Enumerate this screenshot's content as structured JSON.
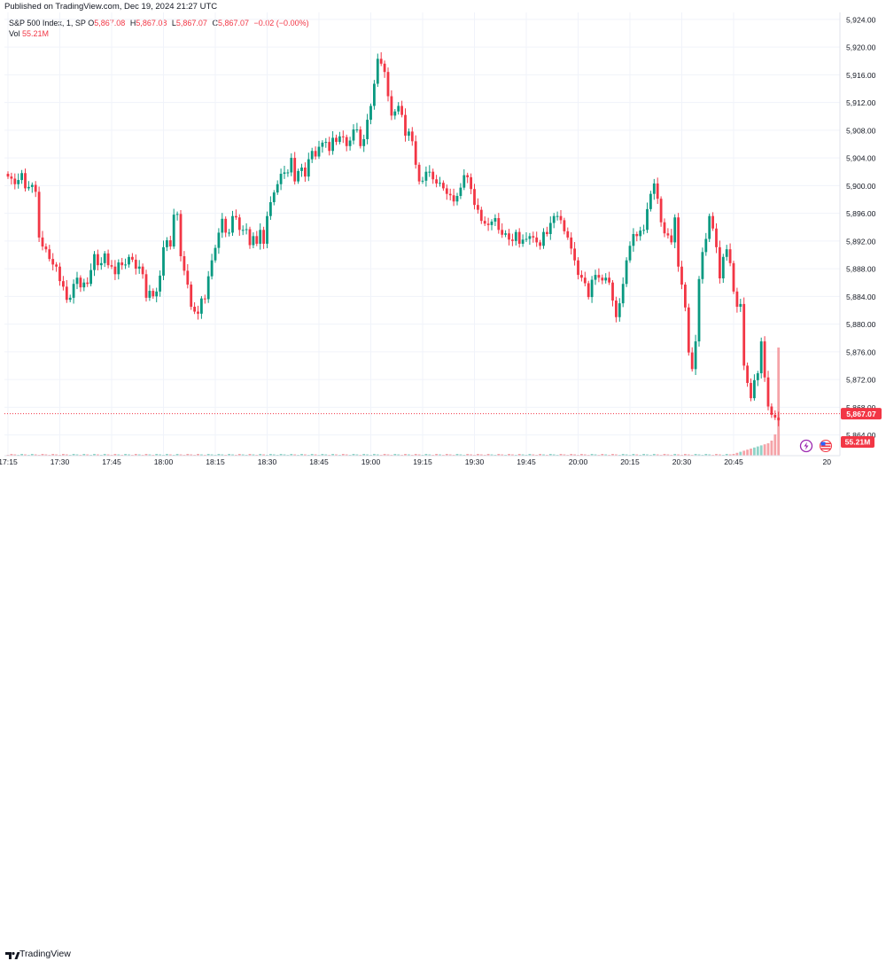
{
  "header": {
    "published": "Published on TradingView.com, Dec 19, 2024 21:27 UTC"
  },
  "legend": {
    "symbol": "S&P 500 Index, 1, SP",
    "o_label": "O",
    "o_value": "5,867.08",
    "h_label": "H",
    "h_value": "5,867.08",
    "l_label": "L",
    "l_value": "5,867.07",
    "c_label": "C",
    "c_value": "5,867.07",
    "change": "−0.02 (−0.00%)",
    "vol_label": "Vol",
    "vol_value": "55.21M"
  },
  "footer": {
    "brand": "TradingView"
  },
  "colors": {
    "up": "#089981",
    "down": "#f23645",
    "vol_up": "#8fd3c7",
    "vol_down": "#f5a3a8",
    "price_tag": "#f23645",
    "grid": "#f0f3fa"
  },
  "icons": [
    "lightning-icon",
    "us-flag-icon",
    "tradingview-logo-icon"
  ],
  "chart_data": {
    "type": "candlestick",
    "title": "S&P 500 Index, 1, SP",
    "ylim": [
      5861,
      5925
    ],
    "y_ticks": [
      "5,924.00",
      "5,920.00",
      "5,916.00",
      "5,912.00",
      "5,908.00",
      "5,904.00",
      "5,900.00",
      "5,896.00",
      "5,892.00",
      "5,888.00",
      "5,884.00",
      "5,880.00",
      "5,876.00",
      "5,872.00",
      "5,868.00",
      "5,864.00"
    ],
    "y_tick_values": [
      5924,
      5920,
      5916,
      5912,
      5908,
      5904,
      5900,
      5896,
      5892,
      5888,
      5884,
      5880,
      5876,
      5872,
      5868,
      5864
    ],
    "x_ticks": [
      "17:15",
      "17:30",
      "17:45",
      "18:00",
      "18:15",
      "18:30",
      "18:45",
      "19:00",
      "19:15",
      "19:30",
      "19:45",
      "20:00",
      "20:15",
      "20:30",
      "20:45",
      "20"
    ],
    "x_tick_index": [
      0,
      15,
      30,
      45,
      60,
      75,
      90,
      105,
      120,
      135,
      150,
      165,
      180,
      195,
      210,
      237
    ],
    "last_price": "5,867.07",
    "last_price_value": 5867.07,
    "volume_label": "55.21M",
    "series_close": [
      5901.3,
      5901,
      5900.2,
      5900.8,
      5901.8,
      5899.6,
      5899.8,
      5900.1,
      5899.1,
      5892.5,
      5891.2,
      5890.8,
      5889.4,
      5888.6,
      5888.3,
      5886.2,
      5885.4,
      5883.5,
      5883.8,
      5885.8,
      5886.7,
      5885.3,
      5886,
      5885.8,
      5887.8,
      5890.1,
      5888.5,
      5888.8,
      5890.2,
      5888.5,
      5888.3,
      5887.2,
      5888.9,
      5888.5,
      5888.6,
      5889.7,
      5889.3,
      5888,
      5888.3,
      5887.2,
      5883.8,
      5884.8,
      5884,
      5884.7,
      5887,
      5891.1,
      5892.1,
      5891.2,
      5895.8,
      5895.9,
      5889.8,
      5887.7,
      5885.7,
      5882.5,
      5881.8,
      5881.5,
      5883.7,
      5883.6,
      5886.9,
      5889.2,
      5891,
      5893.2,
      5895.2,
      5893.2,
      5893.2,
      5895.6,
      5895.4,
      5893.6,
      5893.6,
      5893.7,
      5891.4,
      5892.7,
      5891.6,
      5893.6,
      5891.6,
      5895.6,
      5897.6,
      5899,
      5900.2,
      5901.7,
      5901.9,
      5901.9,
      5904,
      5900.6,
      5902.1,
      5902.6,
      5901.3,
      5903.8,
      5905,
      5904.2,
      5905.6,
      5906.2,
      5906.3,
      5905,
      5906.9,
      5906.3,
      5907.1,
      5907,
      5905.7,
      5906.5,
      5908.1,
      5908.1,
      5905.7,
      5906.7,
      5909.5,
      5911.5,
      5914.7,
      5918.3,
      5917.6,
      5916.4,
      5912.9,
      5910.1,
      5910.7,
      5911.5,
      5910.2,
      5907.2,
      5907.8,
      5906.4,
      5903,
      5900.6,
      5900.7,
      5902,
      5902,
      5900.9,
      5900.3,
      5900.4,
      5899.6,
      5898.8,
      5898.6,
      5897.7,
      5898.5,
      5899.7,
      5901.5,
      5901.2,
      5899.5,
      5897.2,
      5896.5,
      5894.9,
      5894.5,
      5894.3,
      5894.8,
      5895.3,
      5893.6,
      5892.9,
      5893.1,
      5892.2,
      5892,
      5893.3,
      5891.6,
      5892.2,
      5892.3,
      5892.7,
      5892.5,
      5891.8,
      5891.3,
      5893.3,
      5893,
      5894.6,
      5895.6,
      5895.6,
      5895,
      5893.4,
      5892.5,
      5890.9,
      5889.2,
      5887.1,
      5886.7,
      5885.9,
      5883.9,
      5886.4,
      5887.1,
      5886.7,
      5886.3,
      5886.7,
      5886,
      5883.4,
      5881,
      5883,
      5885.8,
      5889.2,
      5891.3,
      5893,
      5892.7,
      5893.5,
      5893.6,
      5896.6,
      5898.8,
      5900.3,
      5898.1,
      5894.7,
      5893.1,
      5892.8,
      5891.8,
      5895.4,
      5888.3,
      5885.7,
      5882.4,
      5875.9,
      5873.5,
      5877.5,
      5886.5,
      5890.4,
      5892.3,
      5895.6,
      5893.8,
      5891.1,
      5886.6,
      5889.7,
      5890.8,
      5888.8,
      5884.7,
      5882.5,
      5882.9,
      5874,
      5871.5,
      5869.3,
      5871.9,
      5872.9,
      5877.5,
      5872.3,
      5868.1,
      5866.9,
      5866.5,
      5866.1
    ]
  }
}
